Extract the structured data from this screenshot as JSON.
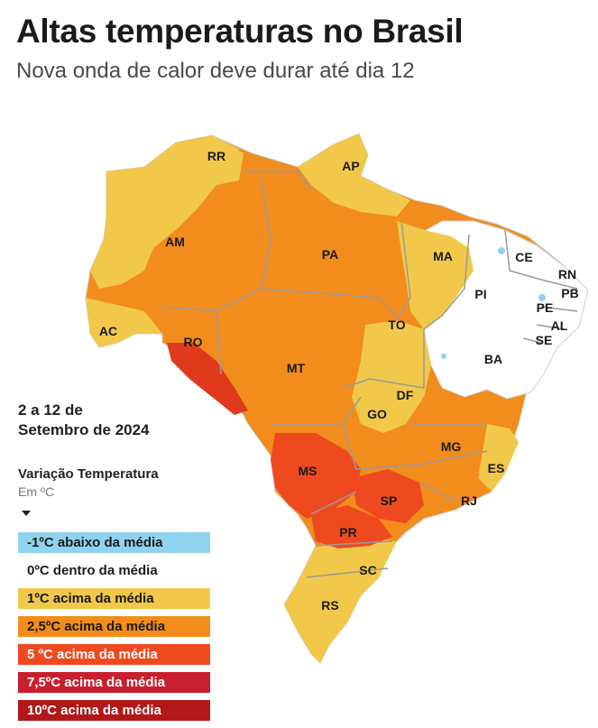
{
  "header": {
    "title": "Altas temperaturas no Brasil",
    "subtitle": "Nova onda de calor deve durar até dia 12"
  },
  "period": {
    "line1": "2 a 12 de",
    "line2": "Setembro de 2024"
  },
  "legend": {
    "title": "Variação Temperatura",
    "unit": "Em ºC",
    "items": [
      {
        "label": "-1ºC abaixo da média",
        "color": "#8fd3f0",
        "text_color": "#1b1b1b"
      },
      {
        "label": "0ºC dentro da média",
        "color": "#ffffff",
        "text_color": "#1b1b1b"
      },
      {
        "label": "1ºC acima da média",
        "color": "#f2c84b",
        "text_color": "#1b1b1b"
      },
      {
        "label": "2,5ºC acima da média",
        "color": "#f28c1c",
        "text_color": "#1b1b1b"
      },
      {
        "label": "5 ºC acima da média",
        "color": "#ef4a1f",
        "text_color": "#ffffff"
      },
      {
        "label": "7,5ºC acima da média",
        "color": "#c8202f",
        "text_color": "#ffffff"
      },
      {
        "label": "10ºC acima da média",
        "color": "#b31818",
        "text_color": "#ffffff"
      }
    ]
  },
  "map": {
    "states": {
      "RR": "RR",
      "AP": "AP",
      "AM": "AM",
      "PA": "PA",
      "MA": "MA",
      "CE": "CE",
      "RN": "RN",
      "PB": "PB",
      "PI": "PI",
      "PE": "PE",
      "AL": "AL",
      "SE": "SE",
      "AC": "AC",
      "RO": "RO",
      "TO": "TO",
      "BA": "BA",
      "MT": "MT",
      "DF": "DF",
      "GO": "GO",
      "MG": "MG",
      "ES": "ES",
      "MS": "MS",
      "SP": "SP",
      "RJ": "RJ",
      "PR": "PR",
      "SC": "SC",
      "RS": "RS"
    }
  }
}
